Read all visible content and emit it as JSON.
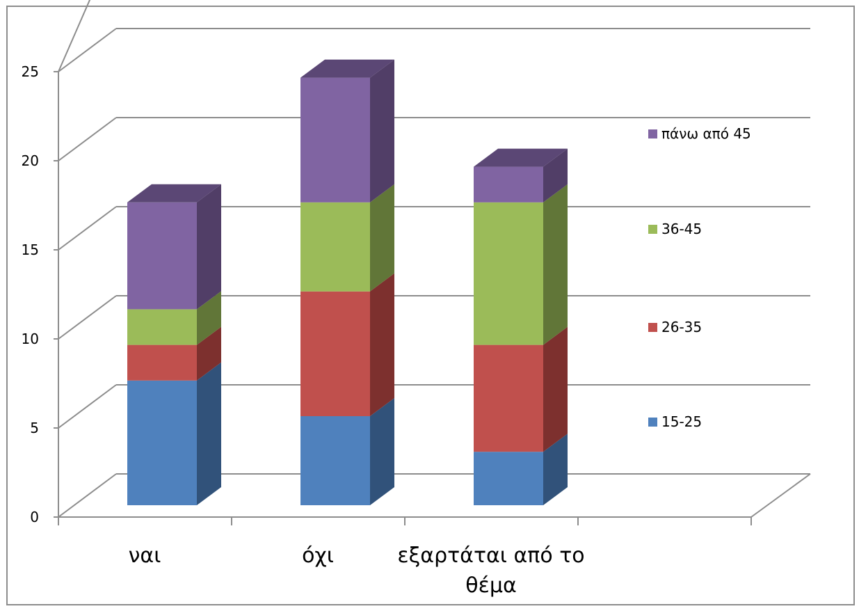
{
  "chart_data": {
    "type": "bar",
    "stacked": true,
    "three_d": true,
    "categories": [
      [
        "ναι"
      ],
      [
        "όχι"
      ],
      [
        "εξαρτάται από το",
        "θέμα"
      ]
    ],
    "series": [
      {
        "name": "15-25",
        "values": [
          7,
          5,
          3
        ],
        "color": "#4f81bd",
        "side_color": "#31527a",
        "top_color": "#3c648f"
      },
      {
        "name": "26-35",
        "values": [
          2,
          7,
          6
        ],
        "color": "#c0504d",
        "side_color": "#7d302e",
        "top_color": "#923a38"
      },
      {
        "name": "36-45",
        "values": [
          2,
          5,
          8
        ],
        "color": "#9bbb59",
        "side_color": "#617638",
        "top_color": "#738c42"
      },
      {
        "name": "πάνω από 45",
        "values": [
          6,
          7,
          2
        ],
        "color": "#8064a2",
        "side_color": "#513e67",
        "top_color": "#5b4775"
      }
    ],
    "ylim": [
      0,
      25
    ],
    "yticks": [
      "0",
      "5",
      "10",
      "15",
      "20",
      "25"
    ],
    "grid": true,
    "legend": "right",
    "legend_order": [
      "πάνω από 45",
      "36-45",
      "26-35",
      "15-25"
    ]
  }
}
